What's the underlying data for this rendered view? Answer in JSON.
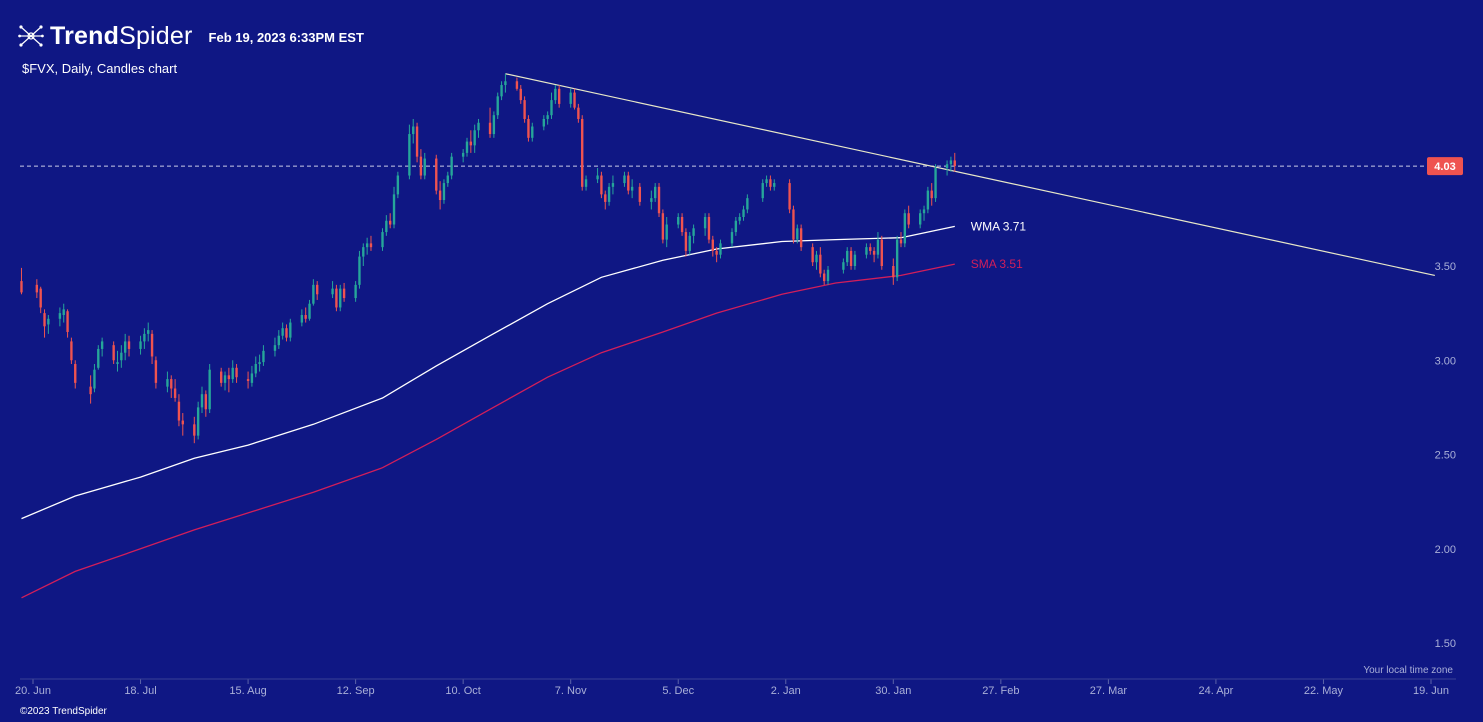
{
  "header": {
    "brand_bold": "Trend",
    "brand_regular": "Spider",
    "timestamp": "Feb 19, 2023 6:33PM EST"
  },
  "subtitle": "$FVX, Daily, Candles chart",
  "copyright": "©2023 TrendSpider",
  "timezone_note": "Your local time zone",
  "colors": {
    "background": "#0f1784",
    "up": "#26a69a",
    "down": "#ef5350",
    "wma": "#ffffff",
    "sma": "#d21e5a",
    "trendline": "#e8e8c8",
    "price_tag": "#ef5350"
  },
  "chart_data": {
    "type": "candlestick",
    "symbol": "$FVX",
    "interval": "Daily",
    "ylim": [
      1.25,
      4.8
    ],
    "y_ticks": [
      "1.50",
      "2.00",
      "2.50",
      "3.00",
      "3.50"
    ],
    "x_ticks": [
      "20. Jun",
      "18. Jul",
      "15. Aug",
      "12. Sep",
      "10. Oct",
      "7. Nov",
      "5. Dec",
      "2. Jan",
      "30. Jan",
      "27. Feb",
      "27. Mar",
      "24. Apr",
      "22. May",
      "19. Jun"
    ],
    "x_tick_dates": [
      "2022-06-20",
      "2022-07-18",
      "2022-08-15",
      "2022-09-12",
      "2022-10-10",
      "2022-11-07",
      "2022-12-05",
      "2023-01-02",
      "2023-01-30",
      "2023-02-27",
      "2023-03-27",
      "2023-04-24",
      "2023-05-22",
      "2023-06-19"
    ],
    "last_price": "4.03",
    "candles": [
      [
        "2022-06-17",
        3.42,
        3.49,
        3.35,
        3.36
      ],
      [
        "2022-06-21",
        3.4,
        3.43,
        3.33,
        3.36
      ],
      [
        "2022-06-22",
        3.38,
        3.39,
        3.25,
        3.28
      ],
      [
        "2022-06-23",
        3.25,
        3.27,
        3.12,
        3.18
      ],
      [
        "2022-06-24",
        3.19,
        3.24,
        3.14,
        3.22
      ],
      [
        "2022-06-27",
        3.22,
        3.28,
        3.18,
        3.25
      ],
      [
        "2022-06-28",
        3.24,
        3.3,
        3.2,
        3.27
      ],
      [
        "2022-06-29",
        3.26,
        3.27,
        3.12,
        3.15
      ],
      [
        "2022-06-30",
        3.1,
        3.12,
        2.98,
        3.0
      ],
      [
        "2022-07-01",
        2.98,
        3.0,
        2.85,
        2.88
      ],
      [
        "2022-07-05",
        2.86,
        2.92,
        2.77,
        2.82
      ],
      [
        "2022-07-06",
        2.85,
        2.98,
        2.83,
        2.95
      ],
      [
        "2022-07-07",
        2.96,
        3.08,
        2.95,
        3.06
      ],
      [
        "2022-07-08",
        3.06,
        3.12,
        3.02,
        3.1
      ],
      [
        "2022-07-11",
        3.08,
        3.1,
        2.98,
        3.0
      ],
      [
        "2022-07-12",
        2.98,
        3.05,
        2.94,
        2.99
      ],
      [
        "2022-07-13",
        3.0,
        3.08,
        2.96,
        3.04
      ],
      [
        "2022-07-14",
        3.04,
        3.14,
        3.0,
        3.1
      ],
      [
        "2022-07-15",
        3.1,
        3.13,
        3.02,
        3.06
      ],
      [
        "2022-07-18",
        3.06,
        3.13,
        3.03,
        3.1
      ],
      [
        "2022-07-19",
        3.1,
        3.17,
        3.06,
        3.14
      ],
      [
        "2022-07-20",
        3.14,
        3.2,
        3.1,
        3.16
      ],
      [
        "2022-07-21",
        3.14,
        3.16,
        2.98,
        3.02
      ],
      [
        "2022-07-22",
        3.0,
        3.02,
        2.85,
        2.88
      ],
      [
        "2022-07-25",
        2.86,
        2.94,
        2.83,
        2.9
      ],
      [
        "2022-07-26",
        2.9,
        2.92,
        2.8,
        2.85
      ],
      [
        "2022-07-27",
        2.85,
        2.9,
        2.78,
        2.8
      ],
      [
        "2022-07-28",
        2.78,
        2.82,
        2.65,
        2.68
      ],
      [
        "2022-07-29",
        2.68,
        2.72,
        2.6,
        2.66
      ],
      [
        "2022-08-01",
        2.66,
        2.7,
        2.56,
        2.6
      ],
      [
        "2022-08-02",
        2.6,
        2.78,
        2.58,
        2.75
      ],
      [
        "2022-08-03",
        2.75,
        2.86,
        2.72,
        2.82
      ],
      [
        "2022-08-04",
        2.82,
        2.84,
        2.7,
        2.74
      ],
      [
        "2022-08-05",
        2.74,
        2.98,
        2.72,
        2.95
      ],
      [
        "2022-08-08",
        2.94,
        2.96,
        2.86,
        2.88
      ],
      [
        "2022-08-09",
        2.88,
        2.94,
        2.84,
        2.92
      ],
      [
        "2022-08-10",
        2.92,
        2.96,
        2.83,
        2.9
      ],
      [
        "2022-08-11",
        2.9,
        3.0,
        2.88,
        2.96
      ],
      [
        "2022-08-12",
        2.96,
        2.98,
        2.88,
        2.91
      ],
      [
        "2022-08-15",
        2.9,
        2.94,
        2.85,
        2.89
      ],
      [
        "2022-08-16",
        2.88,
        2.97,
        2.86,
        2.93
      ],
      [
        "2022-08-17",
        2.93,
        3.02,
        2.91,
        2.98
      ],
      [
        "2022-08-18",
        2.98,
        3.03,
        2.94,
        2.99
      ],
      [
        "2022-08-19",
        2.99,
        3.08,
        2.97,
        3.05
      ],
      [
        "2022-08-22",
        3.05,
        3.12,
        3.02,
        3.08
      ],
      [
        "2022-08-23",
        3.08,
        3.16,
        3.06,
        3.13
      ],
      [
        "2022-08-24",
        3.13,
        3.2,
        3.11,
        3.17
      ],
      [
        "2022-08-25",
        3.17,
        3.19,
        3.1,
        3.12
      ],
      [
        "2022-08-26",
        3.12,
        3.22,
        3.1,
        3.2
      ],
      [
        "2022-08-29",
        3.2,
        3.27,
        3.18,
        3.24
      ],
      [
        "2022-08-30",
        3.24,
        3.28,
        3.2,
        3.22
      ],
      [
        "2022-08-31",
        3.22,
        3.32,
        3.21,
        3.3
      ],
      [
        "2022-09-01",
        3.3,
        3.43,
        3.29,
        3.4
      ],
      [
        "2022-09-02",
        3.4,
        3.42,
        3.32,
        3.35
      ],
      [
        "2022-09-06",
        3.35,
        3.42,
        3.33,
        3.38
      ],
      [
        "2022-09-07",
        3.38,
        3.4,
        3.26,
        3.28
      ],
      [
        "2022-09-08",
        3.28,
        3.4,
        3.26,
        3.38
      ],
      [
        "2022-09-09",
        3.38,
        3.41,
        3.31,
        3.33
      ],
      [
        "2022-09-12",
        3.33,
        3.42,
        3.31,
        3.4
      ],
      [
        "2022-09-13",
        3.4,
        3.58,
        3.38,
        3.55
      ],
      [
        "2022-09-14",
        3.55,
        3.62,
        3.5,
        3.6
      ],
      [
        "2022-09-15",
        3.6,
        3.65,
        3.56,
        3.62
      ],
      [
        "2022-09-16",
        3.62,
        3.66,
        3.58,
        3.6
      ],
      [
        "2022-09-19",
        3.6,
        3.7,
        3.58,
        3.68
      ],
      [
        "2022-09-20",
        3.68,
        3.77,
        3.66,
        3.74
      ],
      [
        "2022-09-21",
        3.74,
        3.78,
        3.7,
        3.72
      ],
      [
        "2022-09-22",
        3.72,
        3.92,
        3.7,
        3.88
      ],
      [
        "2022-09-23",
        3.88,
        4.0,
        3.86,
        3.98
      ],
      [
        "2022-09-26",
        3.98,
        4.25,
        3.96,
        4.2
      ],
      [
        "2022-09-27",
        4.2,
        4.28,
        4.15,
        4.24
      ],
      [
        "2022-09-28",
        4.24,
        4.26,
        4.05,
        4.08
      ],
      [
        "2022-09-29",
        4.08,
        4.12,
        3.96,
        3.98
      ],
      [
        "2022-09-30",
        3.98,
        4.1,
        3.96,
        4.07
      ],
      [
        "2022-10-03",
        4.07,
        4.09,
        3.88,
        3.9
      ],
      [
        "2022-10-04",
        3.9,
        3.95,
        3.8,
        3.85
      ],
      [
        "2022-10-05",
        3.85,
        3.96,
        3.83,
        3.94
      ],
      [
        "2022-10-06",
        3.94,
        4.0,
        3.92,
        3.98
      ],
      [
        "2022-10-07",
        3.98,
        4.1,
        3.96,
        4.08
      ],
      [
        "2022-10-10",
        4.08,
        4.12,
        4.05,
        4.1
      ],
      [
        "2022-10-11",
        4.1,
        4.18,
        4.08,
        4.16
      ],
      [
        "2022-10-12",
        4.16,
        4.22,
        4.1,
        4.14
      ],
      [
        "2022-10-13",
        4.14,
        4.25,
        4.1,
        4.22
      ],
      [
        "2022-10-14",
        4.22,
        4.28,
        4.18,
        4.26
      ],
      [
        "2022-10-17",
        4.26,
        4.34,
        4.18,
        4.2
      ],
      [
        "2022-10-18",
        4.2,
        4.32,
        4.18,
        4.3
      ],
      [
        "2022-10-19",
        4.3,
        4.42,
        4.28,
        4.4
      ],
      [
        "2022-10-20",
        4.4,
        4.48,
        4.38,
        4.46
      ],
      [
        "2022-10-21",
        4.46,
        4.52,
        4.42,
        4.48
      ],
      [
        "2022-10-24",
        4.48,
        4.5,
        4.43,
        4.44
      ],
      [
        "2022-10-25",
        4.44,
        4.46,
        4.36,
        4.38
      ],
      [
        "2022-10-26",
        4.38,
        4.4,
        4.26,
        4.28
      ],
      [
        "2022-10-27",
        4.28,
        4.3,
        4.16,
        4.18
      ],
      [
        "2022-10-28",
        4.18,
        4.26,
        4.16,
        4.24
      ],
      [
        "2022-10-31",
        4.24,
        4.3,
        4.22,
        4.28
      ],
      [
        "2022-11-01",
        4.28,
        4.32,
        4.25,
        4.3
      ],
      [
        "2022-11-02",
        4.3,
        4.42,
        4.28,
        4.38
      ],
      [
        "2022-11-03",
        4.38,
        4.46,
        4.36,
        4.44
      ],
      [
        "2022-11-04",
        4.44,
        4.46,
        4.34,
        4.36
      ],
      [
        "2022-11-07",
        4.36,
        4.44,
        4.34,
        4.42
      ],
      [
        "2022-11-08",
        4.42,
        4.44,
        4.33,
        4.34
      ],
      [
        "2022-11-09",
        4.34,
        4.36,
        4.26,
        4.28
      ],
      [
        "2022-11-10",
        4.28,
        4.3,
        3.9,
        3.92
      ],
      [
        "2022-11-11",
        3.92,
        3.98,
        3.9,
        3.96
      ],
      [
        "2022-11-14",
        3.96,
        4.02,
        3.94,
        3.98
      ],
      [
        "2022-11-15",
        3.98,
        4.0,
        3.86,
        3.88
      ],
      [
        "2022-11-16",
        3.88,
        3.9,
        3.8,
        3.84
      ],
      [
        "2022-11-17",
        3.84,
        3.94,
        3.82,
        3.92
      ],
      [
        "2022-11-18",
        3.92,
        3.98,
        3.88,
        3.94
      ],
      [
        "2022-11-21",
        3.94,
        4.0,
        3.92,
        3.98
      ],
      [
        "2022-11-22",
        3.98,
        4.0,
        3.88,
        3.9
      ],
      [
        "2022-11-23",
        3.9,
        3.96,
        3.86,
        3.92
      ],
      [
        "2022-11-25",
        3.92,
        3.94,
        3.82,
        3.84
      ],
      [
        "2022-11-28",
        3.84,
        3.9,
        3.8,
        3.86
      ],
      [
        "2022-11-29",
        3.86,
        3.94,
        3.84,
        3.92
      ],
      [
        "2022-11-30",
        3.92,
        3.94,
        3.76,
        3.78
      ],
      [
        "2022-12-01",
        3.78,
        3.8,
        3.62,
        3.64
      ],
      [
        "2022-12-02",
        3.64,
        3.76,
        3.6,
        3.72
      ],
      [
        "2022-12-05",
        3.72,
        3.78,
        3.7,
        3.76
      ],
      [
        "2022-12-06",
        3.76,
        3.78,
        3.66,
        3.68
      ],
      [
        "2022-12-07",
        3.68,
        3.7,
        3.55,
        3.58
      ],
      [
        "2022-12-08",
        3.58,
        3.68,
        3.56,
        3.66
      ],
      [
        "2022-12-09",
        3.66,
        3.72,
        3.62,
        3.7
      ],
      [
        "2022-12-12",
        3.7,
        3.78,
        3.66,
        3.76
      ],
      [
        "2022-12-13",
        3.76,
        3.78,
        3.62,
        3.64
      ],
      [
        "2022-12-14",
        3.64,
        3.66,
        3.55,
        3.58
      ],
      [
        "2022-12-15",
        3.58,
        3.6,
        3.52,
        3.56
      ],
      [
        "2022-12-16",
        3.56,
        3.64,
        3.54,
        3.62
      ],
      [
        "2022-12-19",
        3.62,
        3.7,
        3.6,
        3.68
      ],
      [
        "2022-12-20",
        3.68,
        3.76,
        3.66,
        3.74
      ],
      [
        "2022-12-21",
        3.74,
        3.78,
        3.72,
        3.76
      ],
      [
        "2022-12-22",
        3.76,
        3.82,
        3.74,
        3.8
      ],
      [
        "2022-12-23",
        3.8,
        3.88,
        3.78,
        3.86
      ],
      [
        "2022-12-27",
        3.86,
        3.96,
        3.84,
        3.94
      ],
      [
        "2022-12-28",
        3.94,
        3.98,
        3.92,
        3.96
      ],
      [
        "2022-12-29",
        3.96,
        3.98,
        3.9,
        3.92
      ],
      [
        "2022-12-30",
        3.92,
        3.96,
        3.9,
        3.94
      ],
      [
        "2023-01-03",
        3.94,
        3.96,
        3.78,
        3.8
      ],
      [
        "2023-01-04",
        3.8,
        3.82,
        3.62,
        3.64
      ],
      [
        "2023-01-05",
        3.64,
        3.72,
        3.62,
        3.7
      ],
      [
        "2023-01-06",
        3.7,
        3.72,
        3.58,
        3.6
      ],
      [
        "2023-01-09",
        3.6,
        3.62,
        3.5,
        3.52
      ],
      [
        "2023-01-10",
        3.52,
        3.58,
        3.48,
        3.56
      ],
      [
        "2023-01-11",
        3.56,
        3.6,
        3.44,
        3.46
      ],
      [
        "2023-01-12",
        3.46,
        3.48,
        3.4,
        3.42
      ],
      [
        "2023-01-13",
        3.42,
        3.5,
        3.4,
        3.48
      ],
      [
        "2023-01-17",
        3.48,
        3.54,
        3.46,
        3.52
      ],
      [
        "2023-01-18",
        3.52,
        3.6,
        3.5,
        3.58
      ],
      [
        "2023-01-19",
        3.58,
        3.6,
        3.48,
        3.5
      ],
      [
        "2023-01-20",
        3.5,
        3.58,
        3.48,
        3.56
      ],
      [
        "2023-01-23",
        3.56,
        3.62,
        3.54,
        3.6
      ],
      [
        "2023-01-24",
        3.6,
        3.62,
        3.56,
        3.58
      ],
      [
        "2023-01-25",
        3.58,
        3.6,
        3.52,
        3.56
      ],
      [
        "2023-01-26",
        3.56,
        3.68,
        3.54,
        3.64
      ],
      [
        "2023-01-27",
        3.64,
        3.66,
        3.48,
        3.5
      ],
      [
        "2023-01-30",
        3.5,
        3.54,
        3.4,
        3.44
      ],
      [
        "2023-01-31",
        3.44,
        3.66,
        3.42,
        3.64
      ],
      [
        "2023-02-01",
        3.64,
        3.68,
        3.6,
        3.62
      ],
      [
        "2023-02-02",
        3.62,
        3.8,
        3.6,
        3.78
      ],
      [
        "2023-02-03",
        3.78,
        3.82,
        3.7,
        3.72
      ],
      [
        "2023-02-06",
        3.72,
        3.8,
        3.7,
        3.78
      ],
      [
        "2023-02-07",
        3.78,
        3.82,
        3.74,
        3.8
      ],
      [
        "2023-02-08",
        3.8,
        3.92,
        3.78,
        3.9
      ],
      [
        "2023-02-09",
        3.9,
        3.94,
        3.82,
        3.86
      ],
      [
        "2023-02-10",
        3.86,
        4.04,
        3.84,
        4.02
      ],
      [
        "2023-02-13",
        4.02,
        4.06,
        3.98,
        4.04
      ],
      [
        "2023-02-14",
        4.04,
        4.08,
        4.0,
        4.06
      ],
      [
        "2023-02-15",
        4.06,
        4.1,
        4.0,
        4.03
      ]
    ],
    "series": [
      {
        "name": "WMA 3.71",
        "values": [
          [
            "2022-06-17",
            2.16
          ],
          [
            "2022-07-01",
            2.28
          ],
          [
            "2022-07-18",
            2.38
          ],
          [
            "2022-08-01",
            2.48
          ],
          [
            "2022-08-15",
            2.55
          ],
          [
            "2022-09-01",
            2.66
          ],
          [
            "2022-09-19",
            2.8
          ],
          [
            "2022-10-03",
            2.97
          ],
          [
            "2022-10-17",
            3.13
          ],
          [
            "2022-11-01",
            3.3
          ],
          [
            "2022-11-15",
            3.44
          ],
          [
            "2022-12-01",
            3.53
          ],
          [
            "2022-12-15",
            3.59
          ],
          [
            "2023-01-01",
            3.63
          ],
          [
            "2023-01-15",
            3.64
          ],
          [
            "2023-02-01",
            3.65
          ],
          [
            "2023-02-15",
            3.71
          ]
        ]
      },
      {
        "name": "SMA 3.51",
        "values": [
          [
            "2022-06-17",
            1.74
          ],
          [
            "2022-07-01",
            1.88
          ],
          [
            "2022-07-18",
            2.0
          ],
          [
            "2022-08-01",
            2.1
          ],
          [
            "2022-08-15",
            2.19
          ],
          [
            "2022-09-01",
            2.3
          ],
          [
            "2022-09-19",
            2.43
          ],
          [
            "2022-10-03",
            2.58
          ],
          [
            "2022-10-17",
            2.74
          ],
          [
            "2022-11-01",
            2.91
          ],
          [
            "2022-11-15",
            3.04
          ],
          [
            "2022-12-01",
            3.15
          ],
          [
            "2022-12-15",
            3.25
          ],
          [
            "2023-01-01",
            3.35
          ],
          [
            "2023-01-15",
            3.41
          ],
          [
            "2023-02-01",
            3.45
          ],
          [
            "2023-02-15",
            3.51
          ]
        ]
      }
    ],
    "trendline": [
      [
        "2022-10-21",
        4.52
      ],
      [
        "2023-06-20",
        3.45
      ]
    ],
    "reference_line": 4.03
  }
}
